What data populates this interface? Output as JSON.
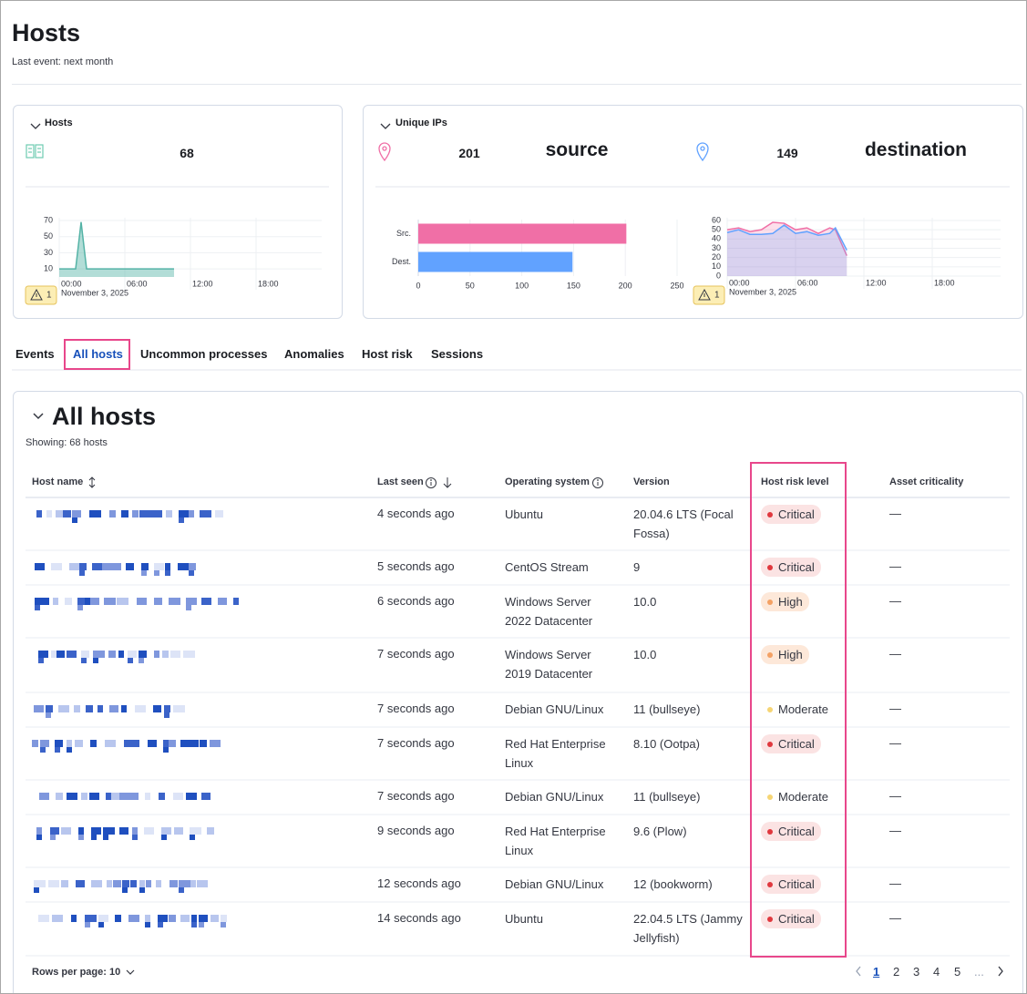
{
  "header": {
    "title": "Hosts",
    "subtitle": "Last event: next month"
  },
  "hosts_panel": {
    "title": "Hosts",
    "count": 68,
    "warnings": 1,
    "chart_data": {
      "type": "area",
      "date": "November 3, 2025",
      "x": [
        0,
        1.5,
        2,
        2.5,
        10.5
      ],
      "values": [
        10,
        10,
        68,
        10,
        10
      ],
      "color": "#54b3a6",
      "xlim": [
        0,
        24
      ],
      "xticks": [
        {
          "value": 0,
          "label": "00:00"
        },
        {
          "value": 6,
          "label": "06:00"
        },
        {
          "value": 12,
          "label": "12:00"
        },
        {
          "value": 18,
          "label": "18:00"
        }
      ],
      "ylim": [
        0,
        70
      ],
      "yticks": [
        10,
        30,
        50,
        70
      ],
      "grid": true
    }
  },
  "ips_panel": {
    "title": "Unique IPs",
    "source": {
      "count": 201,
      "label": "source"
    },
    "destination": {
      "count": 149,
      "label": "destination"
    },
    "warnings": 1,
    "bar_chart": {
      "type": "bar",
      "orientation": "horizontal",
      "categories": [
        "Src.",
        "Dest."
      ],
      "values": [
        201,
        149
      ],
      "colors": [
        "#f06fa6",
        "#61a2ff"
      ],
      "xlim": [
        0,
        250
      ],
      "xticks": [
        0,
        50,
        100,
        150,
        200,
        250
      ],
      "grid": true
    },
    "area_chart": {
      "type": "area",
      "date": "November 3, 2025",
      "x": [
        0,
        1,
        2,
        3,
        4,
        5,
        6,
        7,
        8,
        9,
        9.5,
        10.5
      ],
      "series": [
        {
          "color": "#f06fa6",
          "values": [
            50,
            52,
            48,
            50,
            58,
            57,
            50,
            52,
            46,
            52,
            50,
            22
          ]
        },
        {
          "color": "#61a2ff",
          "values": [
            47,
            50,
            45,
            45,
            46,
            55,
            46,
            48,
            44,
            46,
            52,
            28
          ]
        }
      ],
      "xlim": [
        0,
        24
      ],
      "xticks": [
        {
          "value": 0,
          "label": "00:00"
        },
        {
          "value": 6,
          "label": "06:00"
        },
        {
          "value": 12,
          "label": "12:00"
        },
        {
          "value": 18,
          "label": "18:00"
        }
      ],
      "ylim": [
        0,
        60
      ],
      "yticks": [
        0,
        10,
        20,
        30,
        40,
        50,
        60
      ],
      "grid": true
    }
  },
  "tabs": {
    "items": [
      "Events",
      "All hosts",
      "Uncommon processes",
      "Anomalies",
      "Host risk",
      "Sessions"
    ],
    "selected": 1
  },
  "table": {
    "title": "All hosts",
    "subtitle": "Showing: 68 hosts",
    "columns": [
      "Host name",
      "Last seen",
      "Operating system",
      "Version",
      "Host risk level",
      "Asset criticality"
    ],
    "risk_styles": {
      "Critical": {
        "dot": "#e0383e",
        "bg": "#fbe3e3"
      },
      "High": {
        "dot": "#f4a164",
        "bg": "#fde8d9"
      },
      "Moderate": {
        "dot": "#f6d574",
        "bg": "#ffffff"
      }
    },
    "rows": [
      {
        "last_seen": "4 seconds ago",
        "os": "Ubuntu",
        "version": "20.04.6 LTS (Focal Fossa)",
        "risk": "Critical",
        "criticality": "—"
      },
      {
        "last_seen": "5 seconds ago",
        "os": "CentOS Stream",
        "version": "9",
        "risk": "Critical",
        "criticality": "—"
      },
      {
        "last_seen": "6 seconds ago",
        "os": "Windows Server 2022 Datacenter",
        "version": "10.0",
        "risk": "High",
        "criticality": "—"
      },
      {
        "last_seen": "7 seconds ago",
        "os": "Windows Server 2019 Datacenter",
        "version": "10.0",
        "risk": "High",
        "criticality": "—"
      },
      {
        "last_seen": "7 seconds ago",
        "os": "Debian GNU/Linux",
        "version": "11 (bullseye)",
        "risk": "Moderate",
        "criticality": "—"
      },
      {
        "last_seen": "7 seconds ago",
        "os": "Red Hat Enterprise Linux",
        "version": "8.10 (Ootpa)",
        "risk": "Critical",
        "criticality": "—"
      },
      {
        "last_seen": "7 seconds ago",
        "os": "Debian GNU/Linux",
        "version": "11 (bullseye)",
        "risk": "Moderate",
        "criticality": "—"
      },
      {
        "last_seen": "9 seconds ago",
        "os": "Red Hat Enterprise Linux",
        "version": "9.6 (Plow)",
        "risk": "Critical",
        "criticality": "—"
      },
      {
        "last_seen": "12 seconds ago",
        "os": "Debian GNU/Linux",
        "version": "12 (bookworm)",
        "risk": "Critical",
        "criticality": "—"
      },
      {
        "last_seen": "14 seconds ago",
        "os": "Ubuntu",
        "version": "22.04.5 LTS (Jammy Jellyfish)",
        "risk": "Critical",
        "criticality": "—"
      }
    ]
  },
  "footer": {
    "rows_per_page": "Rows per page: 10",
    "pages": [
      1,
      2,
      3,
      4,
      5
    ],
    "current": 0,
    "ellipsis": "..."
  }
}
